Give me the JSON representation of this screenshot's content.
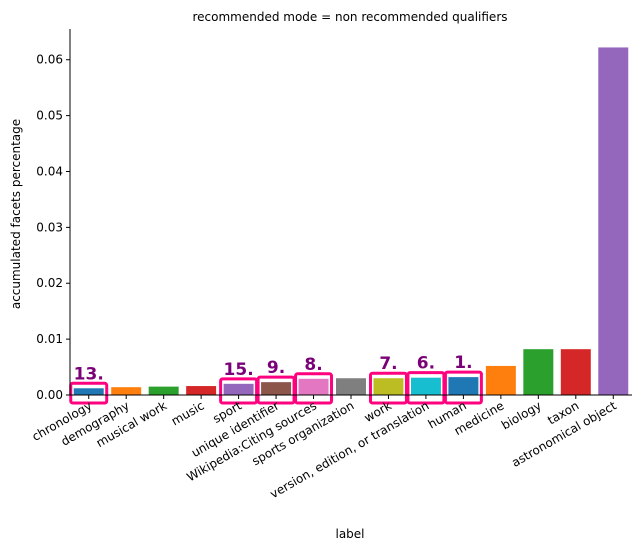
{
  "chart_data": {
    "type": "bar",
    "title": "recommended mode = non recommended qualifiers",
    "xlabel": "label",
    "ylabel": "accumulated facets percentage",
    "ylim": [
      0,
      0.0655
    ],
    "yticks": [
      "0.00",
      "0.01",
      "0.02",
      "0.03",
      "0.04",
      "0.05",
      "0.06"
    ],
    "grid": false,
    "legend": "none",
    "bars": [
      {
        "label": "chronology",
        "value": 0.0012,
        "color": "#1f77b4",
        "rank": "13."
      },
      {
        "label": "demography",
        "value": 0.0014,
        "color": "#ff7f0e",
        "rank": ""
      },
      {
        "label": "musical work",
        "value": 0.0015,
        "color": "#2ca02c",
        "rank": ""
      },
      {
        "label": "music",
        "value": 0.0016,
        "color": "#d62728",
        "rank": ""
      },
      {
        "label": "sport",
        "value": 0.002,
        "color": "#9467bd",
        "rank": "15."
      },
      {
        "label": "unique identifier",
        "value": 0.0023,
        "color": "#8c564b",
        "rank": "9."
      },
      {
        "label": "Wikipedia:Citing sources",
        "value": 0.0029,
        "color": "#e377c2",
        "rank": "8."
      },
      {
        "label": "sports organization",
        "value": 0.003,
        "color": "#7f7f7f",
        "rank": ""
      },
      {
        "label": "work",
        "value": 0.003,
        "color": "#bcbd22",
        "rank": "7."
      },
      {
        "label": "version, edition, or translation",
        "value": 0.0031,
        "color": "#17becf",
        "rank": "6."
      },
      {
        "label": "human",
        "value": 0.0032,
        "color": "#1f77b4",
        "rank": "1."
      },
      {
        "label": "medicine",
        "value": 0.0052,
        "color": "#ff7f0e",
        "rank": ""
      },
      {
        "label": "biology",
        "value": 0.0082,
        "color": "#2ca02c",
        "rank": ""
      },
      {
        "label": "taxon",
        "value": 0.0082,
        "color": "#d62728",
        "rank": ""
      },
      {
        "label": "astronomical object",
        "value": 0.0622,
        "color": "#9467bd",
        "rank": ""
      }
    ],
    "highlight_color": "#ff007f",
    "rank_color": "#7a0177"
  }
}
